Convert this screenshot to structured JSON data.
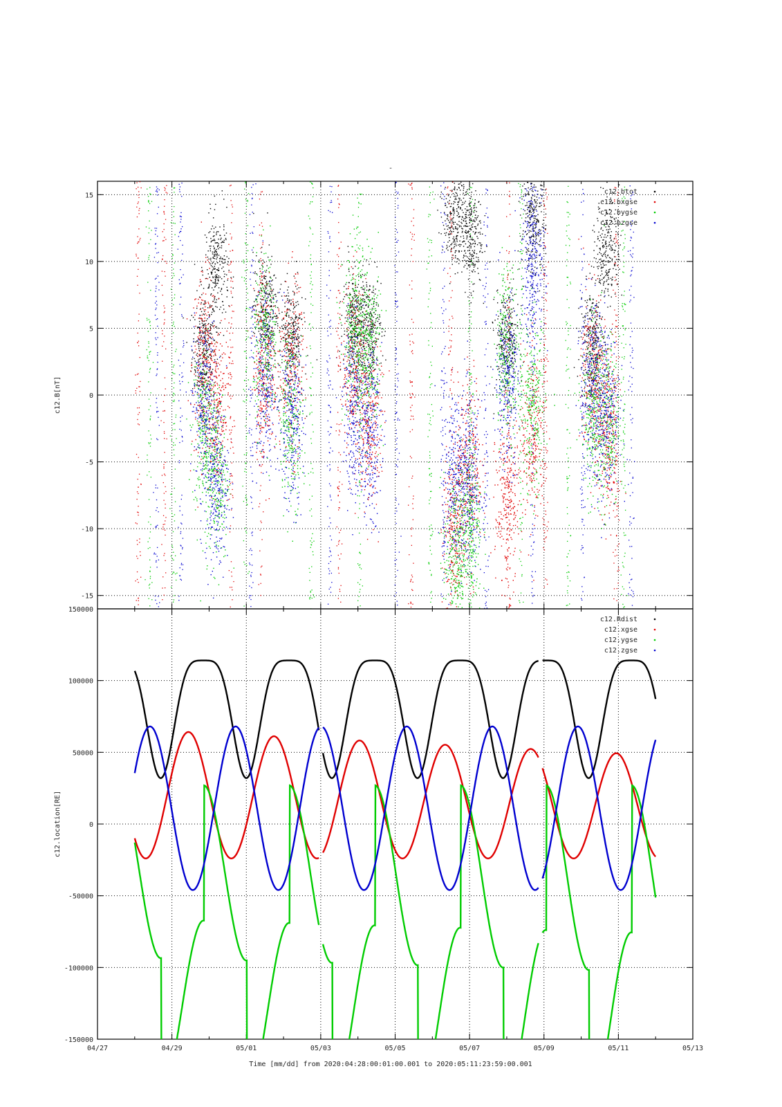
{
  "page": {
    "title_mark": "-"
  },
  "x_axis": {
    "label": "Time [mm/dd]  from 2020:04:28:00:01:00.001  to  2020:05:11:23:59:00.001",
    "range_days": [
      0,
      16
    ],
    "ticks": [
      {
        "day": 0,
        "label": "04/27"
      },
      {
        "day": 2,
        "label": "04/29"
      },
      {
        "day": 4,
        "label": "05/01"
      },
      {
        "day": 6,
        "label": "05/03"
      },
      {
        "day": 8,
        "label": "05/05"
      },
      {
        "day": 10,
        "label": "05/07"
      },
      {
        "day": 12,
        "label": "05/09"
      },
      {
        "day": 14,
        "label": "05/11"
      },
      {
        "day": 16,
        "label": "05/13"
      }
    ]
  },
  "chart_data": [
    {
      "type": "scatter",
      "title": "",
      "ylabel": "c12.B[nT]",
      "ylim": [
        -16,
        16
      ],
      "yticks": [
        15,
        10,
        5,
        0,
        -5,
        -10,
        -15
      ],
      "grid": true,
      "legend_position": "top-right",
      "series": [
        {
          "name": "c12.btot",
          "color": "#000000"
        },
        {
          "name": "c12.bxgse",
          "color": "#e00000"
        },
        {
          "name": "c12.bygse",
          "color": "#00cc00"
        },
        {
          "name": "c12.bzgse",
          "color": "#0000d0"
        }
      ],
      "data_gaps_days": [
        [
          5.95,
          6.05
        ],
        [
          11.85,
          11.95
        ]
      ],
      "orbit_segments": [
        {
          "start_day": 1.0,
          "perigee_day": 1.7,
          "apogee_day": 2.85,
          "end_day": 3.9
        },
        {
          "start_day": 3.9,
          "perigee_day": 3.95,
          "apogee_day": 5.1,
          "end_day": 5.95
        },
        {
          "start_day": 6.05,
          "perigee_day": 6.2,
          "apogee_day": 7.4,
          "end_day": 8.4
        },
        {
          "start_day": 8.4,
          "perigee_day": 8.45,
          "apogee_day": 9.65,
          "end_day": 10.65
        },
        {
          "start_day": 10.65,
          "perigee_day": 10.7,
          "apogee_day": 11.9,
          "end_day": 11.85
        },
        {
          "start_day": 11.95,
          "perigee_day": 12.3,
          "apogee_day": 14.1,
          "end_day": 15.0
        }
      ],
      "clusters": [
        {
          "center_day": 2.85,
          "btot": 3.5,
          "bx": 2.5,
          "by": -2.5,
          "bz": -1.0
        },
        {
          "center_day": 3.2,
          "btot": 9.5,
          "bx": -1.0,
          "by": -6.0,
          "bz": -6.5
        },
        {
          "center_day": 4.5,
          "btot": 6.5,
          "bx": 2.0,
          "by": 4.0,
          "bz": 1.0
        },
        {
          "center_day": 5.2,
          "btot": 4.5,
          "bx": 2.0,
          "by": -1.5,
          "bz": -2.0
        },
        {
          "center_day": 6.9,
          "btot": 5.5,
          "bx": 2.0,
          "by": 4.5,
          "bz": -1.0
        },
        {
          "center_day": 7.3,
          "btot": 5.0,
          "bx": -2.0,
          "by": 3.5,
          "bz": -3.0
        },
        {
          "center_day": 9.6,
          "btot": 13.5,
          "bx": -10.0,
          "by": -12.0,
          "bz": -6.0
        },
        {
          "center_day": 10.0,
          "btot": 12.0,
          "bx": -5.0,
          "by": -10.0,
          "bz": -6.5
        },
        {
          "center_day": 11.0,
          "btot": 4.0,
          "bx": -8.0,
          "by": 3.5,
          "bz": 1.0
        },
        {
          "center_day": 11.7,
          "btot": 13.0,
          "bx": -3.0,
          "by": -1.0,
          "bz": 10.0
        },
        {
          "center_day": 13.3,
          "btot": 4.0,
          "bx": 1.5,
          "by": -1.0,
          "bz": 0.5
        },
        {
          "center_day": 13.7,
          "btot": 11.0,
          "bx": -3.0,
          "by": -2.0,
          "bz": -1.0
        }
      ]
    },
    {
      "type": "scatter",
      "title": "",
      "ylabel": "c12.location[RE]",
      "ylim": [
        -150000,
        150000
      ],
      "yticks": [
        150000,
        100000,
        50000,
        0,
        -50000,
        -100000,
        -150000
      ],
      "ytick_labels": [
        "150000",
        "100000",
        "50000",
        "0",
        "-50000",
        "-100000",
        "-150000"
      ],
      "grid": true,
      "legend_position": "top-right",
      "series": [
        {
          "name": "c12.Rdist",
          "color": "#000000"
        },
        {
          "name": "c12.xgse",
          "color": "#e00000"
        },
        {
          "name": "c12.ygse",
          "color": "#00cc00"
        },
        {
          "name": "c12.zgse",
          "color": "#0000d0"
        }
      ],
      "data_start_day": 1.0,
      "data_end_day": 15.0,
      "orbit_period_days": 2.3,
      "perigee_days": [
        1.7,
        4.0,
        6.3,
        8.6,
        10.9,
        13.2
      ],
      "rdist_range": [
        32000,
        114000
      ],
      "xgse": {
        "amplitude_start": 45000,
        "amplitude_end": 36000,
        "offset_start": 21000,
        "offset_end": 12000,
        "peaks": [
          65000,
          62000,
          58000,
          55000,
          52000,
          48000
        ]
      },
      "ygse": {
        "amplitude": 60000,
        "offset": -33000,
        "minimums": [
          -93000,
          -96000,
          -98000,
          -100000,
          -101000,
          -103000
        ],
        "maximums": [
          26000,
          27000,
          28000,
          28000,
          28000,
          21000
        ]
      },
      "zgse": {
        "amplitude": 57000,
        "offset": 11000,
        "max": 68000,
        "min": -47000
      }
    }
  ]
}
